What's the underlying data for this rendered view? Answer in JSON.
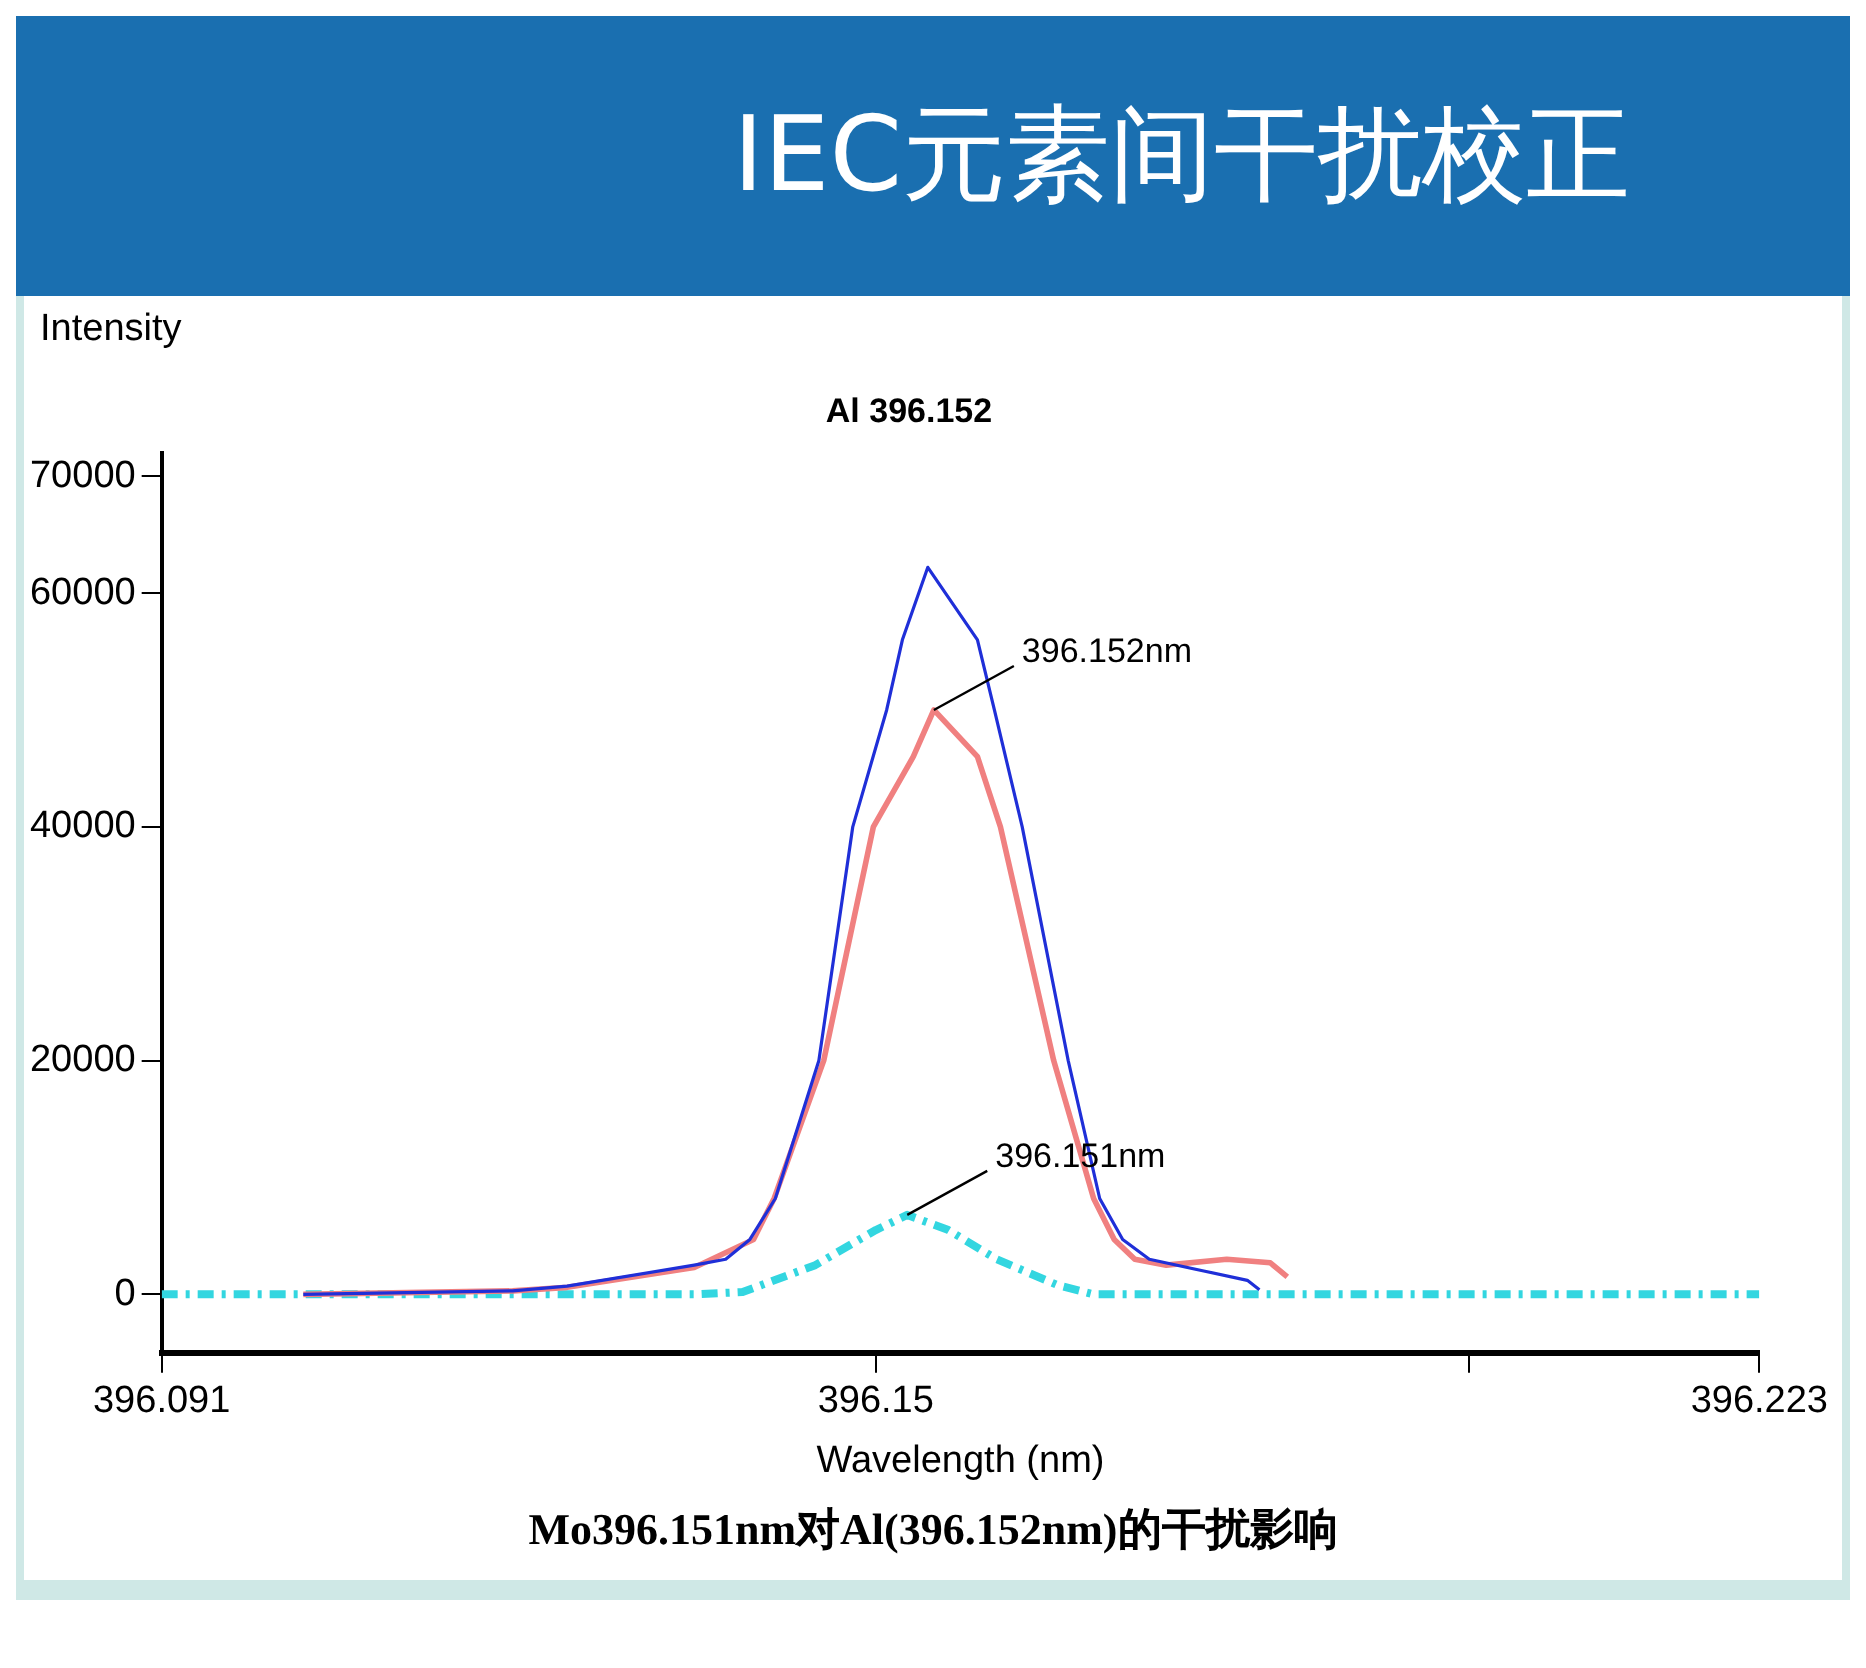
{
  "chart_data": {
    "type": "line",
    "title": "IEC元素间干扰校正",
    "subtitle": "Al 396.152",
    "xlabel": "Wavelength (nm)",
    "ylabel": "Intensity",
    "xlim": [
      396.091,
      396.223
    ],
    "xticks": [
      396.091,
      396.15,
      {
        "value": 396.199,
        "label": null
      },
      396.223
    ],
    "ylim": [
      -5000,
      72000
    ],
    "yticks": [
      0,
      20000,
      40000,
      60000,
      70000
    ],
    "grid": false,
    "legend": false,
    "marker": "none",
    "series": [
      {
        "color": "#1f2fd8",
        "x": [
          396.1027,
          396.12,
          396.1245,
          396.135,
          396.1376,
          396.1396,
          396.1417,
          396.1453,
          396.1481,
          396.1509,
          396.1522,
          396.1543,
          396.1584,
          396.1598,
          396.1621,
          396.1659,
          396.1685,
          396.1704,
          396.1726,
          396.1771,
          396.1807,
          396.1817
        ],
        "values": [
          0,
          300,
          700,
          2500,
          3000,
          4700,
          8200,
          20000,
          40000,
          50000,
          56000,
          62200,
          56000,
          50000,
          40000,
          20000,
          8200,
          4700,
          3000,
          2000,
          1200,
          400
        ]
      },
      {
        "color": "#f08080",
        "x": [
          396.1027,
          396.12,
          396.1245,
          396.135,
          396.1399,
          396.1416,
          396.1457,
          396.1498,
          396.1531,
          396.1548,
          396.1584,
          396.1603,
          396.1647,
          396.168,
          396.1697,
          396.1714,
          396.174,
          396.179,
          396.1826,
          396.184
        ],
        "values": [
          0,
          300,
          600,
          2300,
          4700,
          8200,
          20000,
          40000,
          46000,
          50000,
          46000,
          40000,
          20000,
          8200,
          4700,
          3000,
          2500,
          3000,
          2700,
          1500
        ]
      },
      {
        "color": "#33d6e0",
        "line_style": "dashed",
        "x": [
          396.091,
          396.135,
          396.139,
          396.145,
          396.15,
          396.1526,
          396.156,
          396.16,
          396.165,
          396.168,
          396.223
        ],
        "values": [
          0,
          0,
          200,
          2500,
          5500,
          6800,
          5500,
          3000,
          800,
          0,
          0
        ]
      }
    ],
    "annotations": [
      {
        "text": "396.152nm",
        "x": 396.1548,
        "y": 50000
      },
      {
        "text": "396.151nm",
        "x": 396.1526,
        "y": 6800
      },
      "Mo396.151nm对Al(396.152nm)的干扰影响"
    ]
  }
}
